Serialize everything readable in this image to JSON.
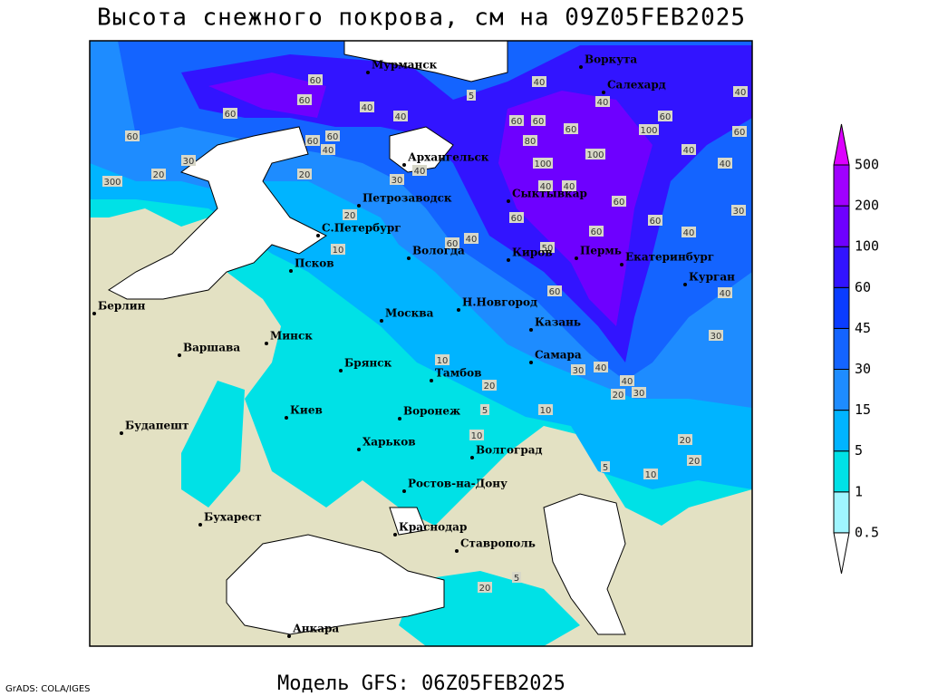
{
  "header": {
    "title": "Высота снежного покрова, см на 09Z05FEB2025"
  },
  "footer": {
    "model": "Модель GFS: 06Z05FEB2025",
    "credit": "GrADS: COLA/IGES"
  },
  "map": {
    "cities": [
      "Мурманск",
      "Воркута",
      "Салехард",
      "Архангельск",
      "Петрозаводск",
      "Сыктывкар",
      "С.Петербург",
      "Вологда",
      "Киров",
      "Пермь",
      "Екатеринбург",
      "Курган",
      "Псков",
      "Н.Новгород",
      "Москва",
      "Казань",
      "Берлин",
      "Варшава",
      "Минск",
      "Брянск",
      "Тамбов",
      "Самара",
      "Воронеж",
      "Киев",
      "Будапешт",
      "Харьков",
      "Волгоград",
      "Ростов-на-Дону",
      "Бухарест",
      "Краснодар",
      "Ставрополь",
      "Анкара"
    ],
    "contour_labels": [
      60,
      60,
      40,
      40,
      60,
      60,
      30,
      20,
      300,
      60,
      60,
      40,
      20,
      30,
      40,
      20,
      10,
      60,
      60,
      80,
      60,
      40,
      100,
      60,
      60,
      40,
      40,
      40,
      100,
      100,
      40,
      40,
      60,
      60,
      60,
      40,
      30,
      60,
      50,
      60,
      40,
      30,
      40,
      30,
      40,
      20,
      30,
      20,
      10,
      10,
      5,
      10,
      20,
      20,
      10,
      5,
      60,
      40,
      5,
      40,
      5,
      20
    ]
  },
  "legend": {
    "levels": [
      0.5,
      1,
      5,
      15,
      30,
      45,
      60,
      100,
      200,
      500
    ],
    "colors": [
      "#ffffff",
      "#a0f5ff",
      "#00e1e6",
      "#00b4ff",
      "#1e8cff",
      "#1464ff",
      "#0a3cff",
      "#3214ff",
      "#6e00ff",
      "#a000ff",
      "#dc00ff"
    ]
  }
}
